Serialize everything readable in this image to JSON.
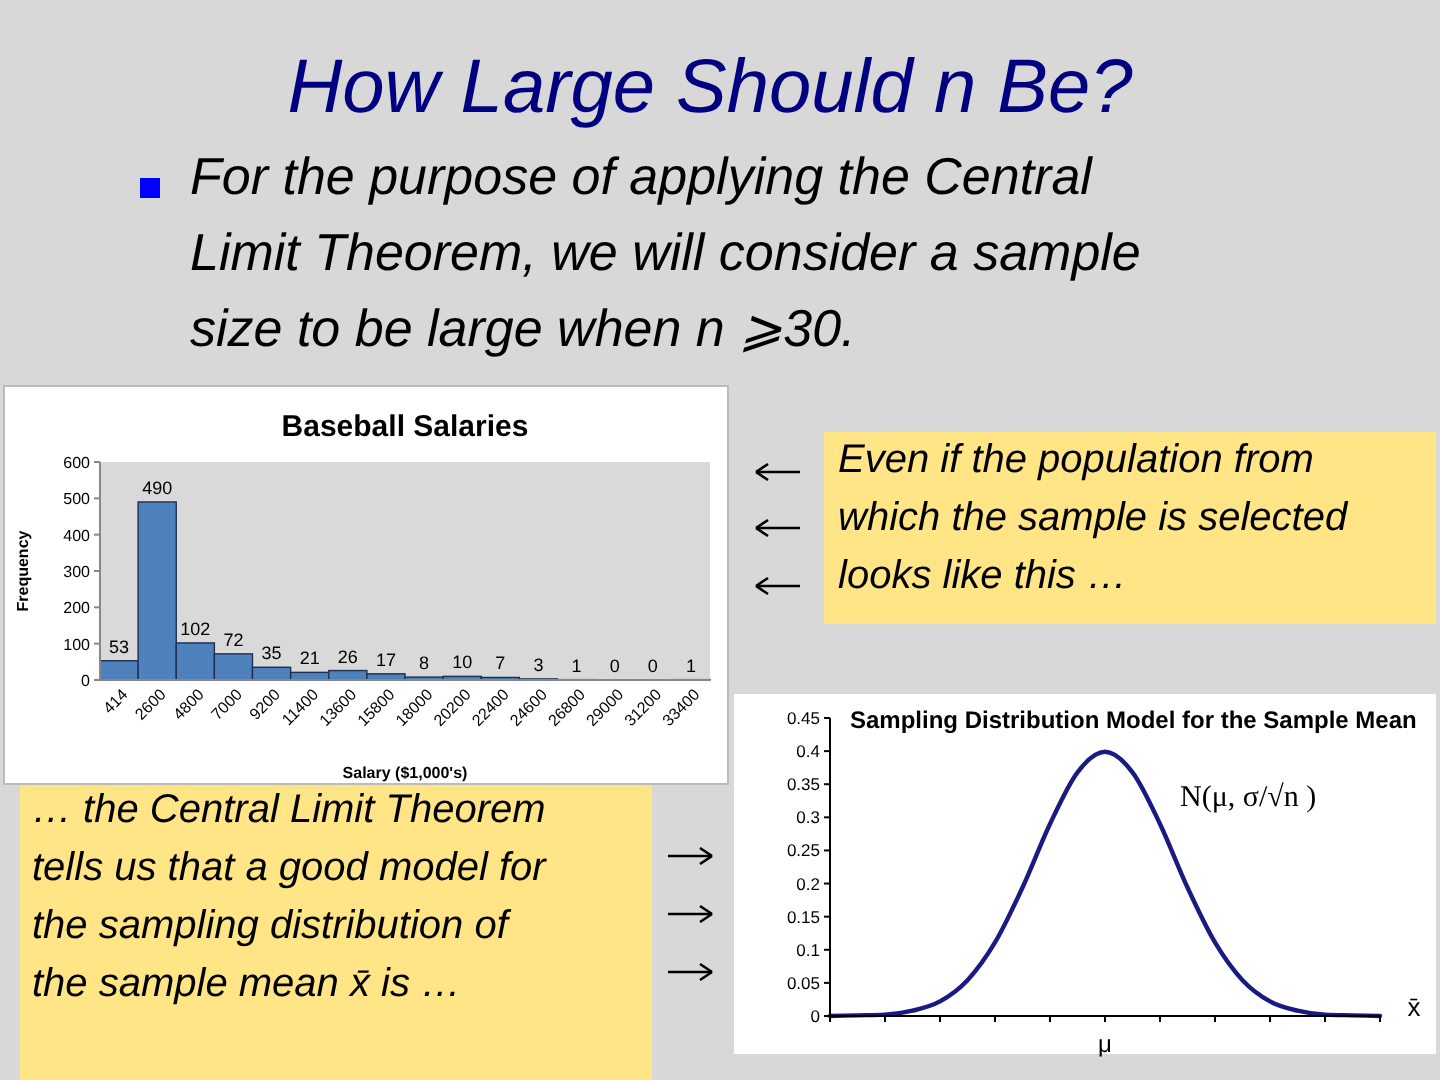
{
  "chart_data": [
    {
      "type": "other",
      "title": "How Large Should n Be?",
      "annotations": [
        "For the purpose of applying the Central Limit Theorem, we will consider a sample size to be large when n ⩾30.",
        "Even if the population from which the sample is selected looks like this …",
        "… the Central Limit Theorem tells us that a good model for the sampling distribution of the sample mean x̄ is …"
      ]
    },
    {
      "type": "bar",
      "title": "Baseball Salaries",
      "xlabel": "Salary ($1,000's)",
      "ylabel": "Frequency",
      "categories": [
        "414",
        "2600",
        "4800",
        "7000",
        "9200",
        "11400",
        "13600",
        "15800",
        "18000",
        "20200",
        "22400",
        "24600",
        "26800",
        "29000",
        "31200",
        "33400"
      ],
      "values": [
        53,
        490,
        102,
        72,
        35,
        21,
        26,
        17,
        8,
        10,
        7,
        3,
        1,
        0,
        0,
        1
      ],
      "color": "#4f81bd",
      "ylim": [
        0,
        600
      ],
      "yticks": [
        0,
        100,
        200,
        300,
        400,
        500,
        600
      ],
      "data_labels": true,
      "grid": false
    },
    {
      "type": "line",
      "title": "Sampling Distribution Model for the Sample Mean",
      "xlabel": "x̄",
      "annotations": [
        "N(μ, σ/√n )"
      ],
      "categories": [
        null,
        null,
        null,
        null,
        null,
        null,
        null,
        null,
        null,
        null,
        "μ",
        null,
        null,
        null,
        null,
        null,
        null,
        null,
        null,
        null,
        null
      ],
      "values": [
        0.0,
        0.001,
        0.002,
        0.008,
        0.022,
        0.054,
        0.111,
        0.194,
        0.29,
        0.368,
        0.399,
        0.368,
        0.29,
        0.194,
        0.111,
        0.054,
        0.022,
        0.008,
        0.002,
        0.001,
        0.0
      ],
      "color": "#1a1a80",
      "ylim": [
        0,
        0.45
      ],
      "yticks": [
        0,
        0.05,
        0.1,
        0.15,
        0.2,
        0.25,
        0.3,
        0.35,
        0.4,
        0.45
      ],
      "marker": "none",
      "line_style": "solid"
    }
  ]
}
